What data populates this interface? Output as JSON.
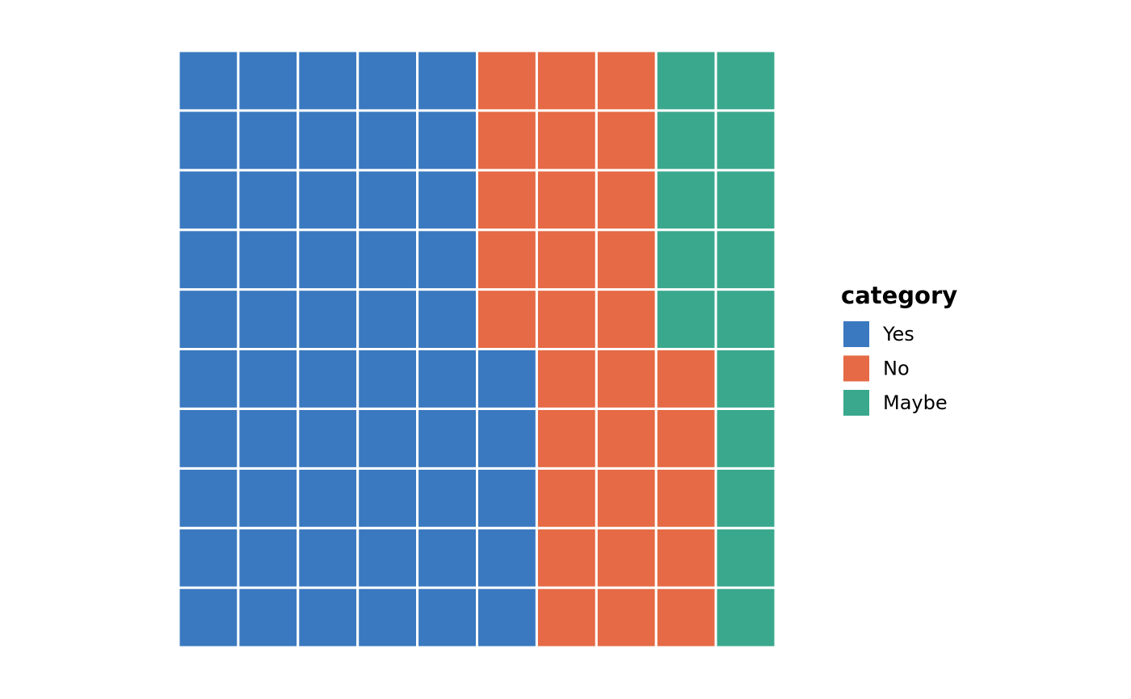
{
  "chart_data": {
    "type": "waffle",
    "grid_rows": 10,
    "grid_cols": 10,
    "fill_order": "column-major, bottom-to-top, left-to-right",
    "grid": false,
    "legend_title": "category",
    "legend_position": "right",
    "series": [
      {
        "name": "Yes",
        "value": 55,
        "color": "#3a79bf"
      },
      {
        "name": "No",
        "value": 30,
        "color": "#e56a45"
      },
      {
        "name": "Maybe",
        "value": 15,
        "color": "#3aa88d"
      }
    ]
  }
}
